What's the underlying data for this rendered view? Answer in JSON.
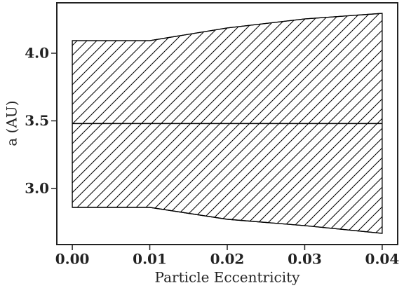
{
  "chart_data": {
    "type": "fill_between",
    "xlabel": "Particle Eccentricity",
    "ylabel": "a (AU)",
    "x": [
      0.0,
      0.01,
      0.02,
      0.03,
      0.04
    ],
    "lower": [
      2.86,
      2.86,
      2.772,
      2.725,
      2.668
    ],
    "upper": [
      4.093,
      4.093,
      4.187,
      4.254,
      4.295
    ],
    "hline": 3.48,
    "hatch": true,
    "color": "#000000",
    "xlim": [
      -0.002,
      0.042
    ],
    "ylim": [
      2.585,
      4.373
    ],
    "xticks": [
      {
        "value": 0.0,
        "label": "0.00"
      },
      {
        "value": 0.01,
        "label": "0.01"
      },
      {
        "value": 0.02,
        "label": "0.02"
      },
      {
        "value": 0.03,
        "label": "0.03"
      },
      {
        "value": 0.04,
        "label": "0.04"
      }
    ],
    "yticks": [
      {
        "value": 3.0,
        "label": "3.0"
      },
      {
        "value": 3.5,
        "label": "3.5"
      },
      {
        "value": 4.0,
        "label": "4.0"
      }
    ]
  }
}
